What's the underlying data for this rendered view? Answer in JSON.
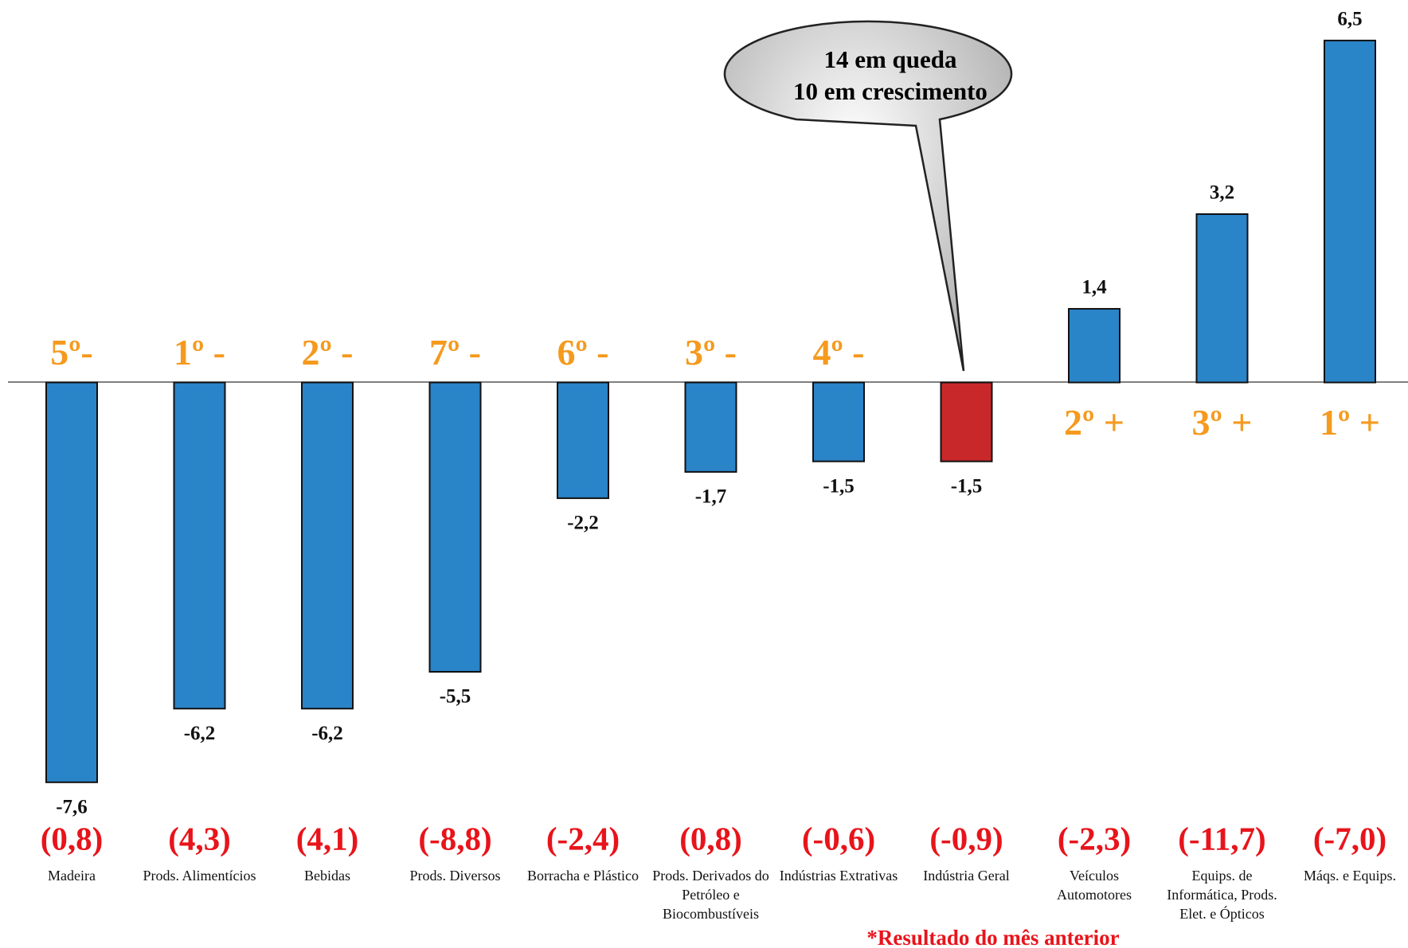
{
  "chart_data": {
    "type": "bar",
    "categories": [
      "Madeira",
      "Prods. Alimentícios",
      "Bebidas",
      "Prods. Diversos",
      "Borracha e Plástico",
      "Prods. Derivados do Petróleo e Biocombustíveis",
      "Indústrias Extrativas",
      "Indústria Geral",
      "Veículos Automotores",
      "Equips. de Informática, Prods. Elet. e Ópticos",
      "Máqs. e Equips."
    ],
    "values": [
      -7.6,
      -6.2,
      -6.2,
      -5.5,
      -2.2,
      -1.7,
      -1.5,
      -1.5,
      1.4,
      3.2,
      6.5
    ],
    "value_labels": [
      "-7,6",
      "-6,2",
      "-6,2",
      "-5,5",
      "-2,2",
      "-1,7",
      "-1,5",
      "-1,5",
      "1,4",
      "3,2",
      "6,5"
    ],
    "colors": [
      "#2a84c8",
      "#2a84c8",
      "#2a84c8",
      "#2a84c8",
      "#2a84c8",
      "#2a84c8",
      "#2a84c8",
      "#c9282a",
      "#2a84c8",
      "#2a84c8",
      "#2a84c8"
    ],
    "rank_labels": [
      "5º-",
      "1º -",
      "2º -",
      "7º -",
      "6º -",
      "3º -",
      "4º -",
      null,
      "2º +",
      "3º +",
      "1º +"
    ],
    "previous_month_labels": [
      "(0,8)",
      "(4,3)",
      "(4,1)",
      "(-8,8)",
      "(-2,4)",
      "(0,8)",
      "(-0,6)",
      "(-0,9)",
      "(-2,3)",
      "(-11,7)",
      "(-7,0)"
    ],
    "ylim": [
      -10.75,
      7.27
    ],
    "callout": [
      "14 em queda",
      "10 em crescimento"
    ],
    "footnote": "*Resultado do mês anterior"
  }
}
